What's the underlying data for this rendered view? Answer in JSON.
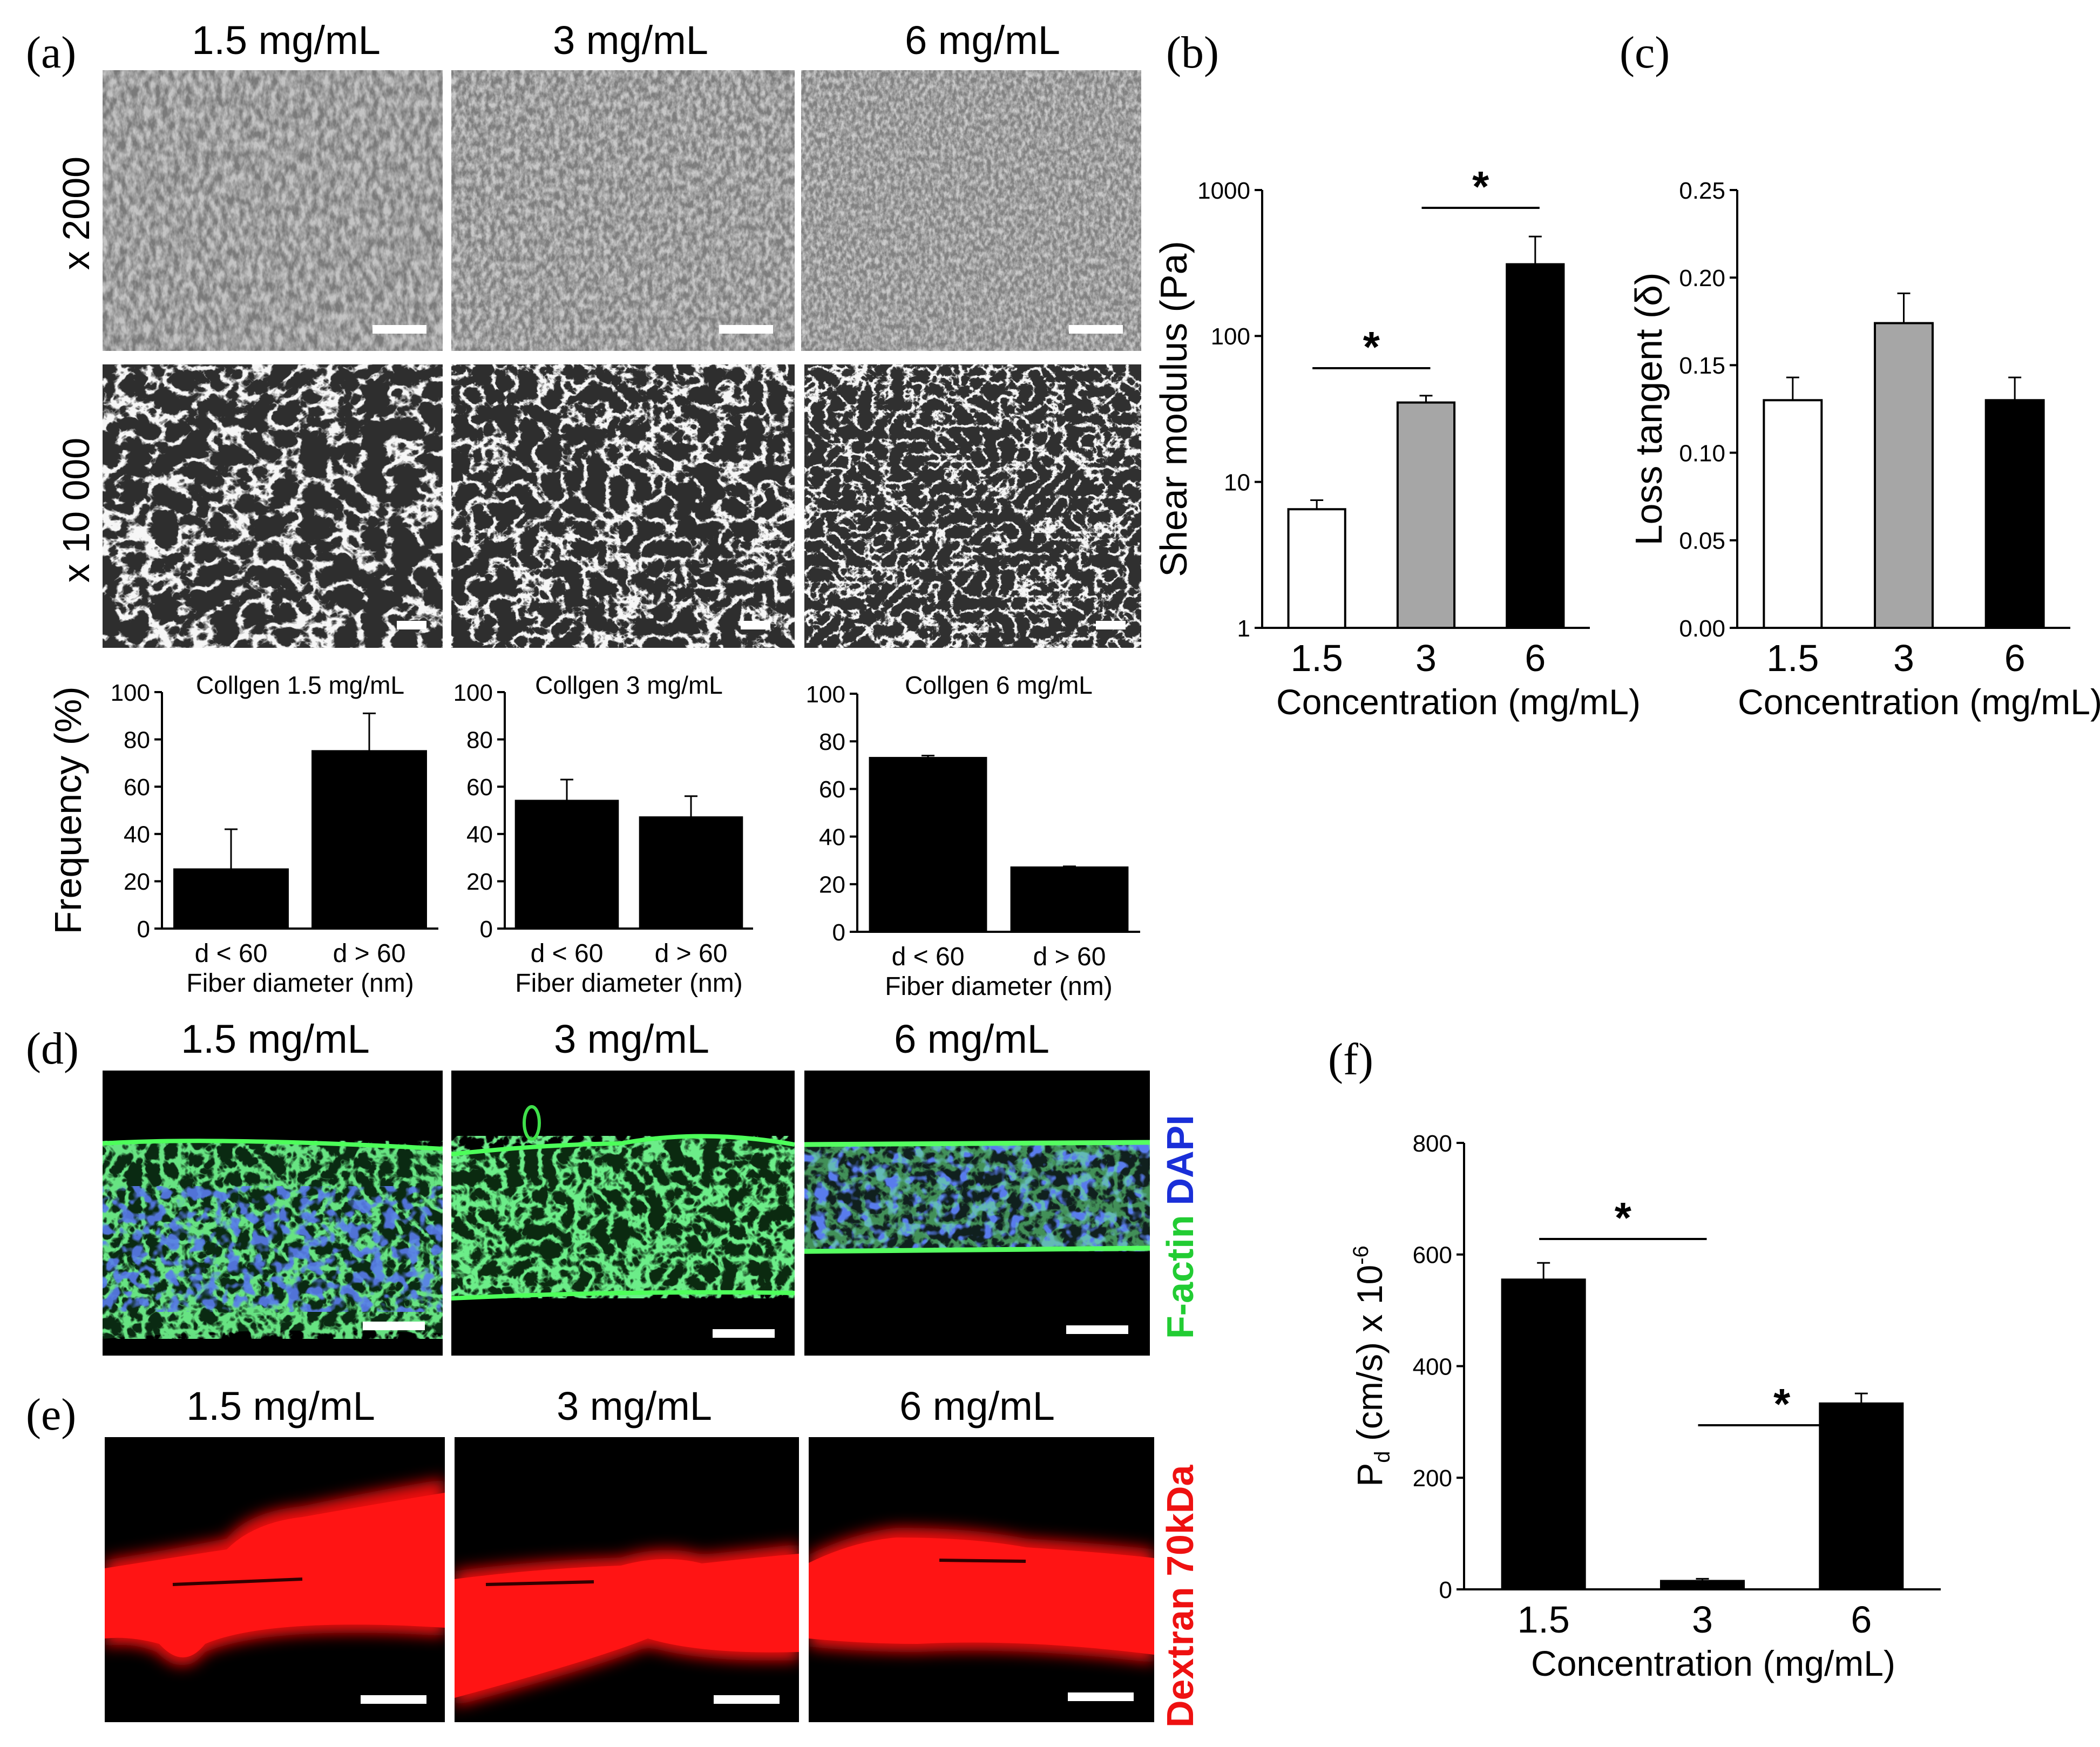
{
  "panels": {
    "a": {
      "letter": "(a)",
      "columns": [
        "1.5 mg/mL",
        "3 mg/mL",
        "6 mg/mL"
      ],
      "rows": [
        "x 2000",
        "x 10 000"
      ]
    },
    "b": {
      "letter": "(b)"
    },
    "c": {
      "letter": "(c)"
    },
    "d": {
      "letter": "(d)",
      "columns": [
        "1.5 mg/mL",
        "3 mg/mL",
        "6 mg/mL"
      ],
      "side_label_1": "F-actin",
      "side_label_2": "DAPI"
    },
    "e": {
      "letter": "(e)",
      "columns": [
        "1.5 mg/mL",
        "3 mg/mL",
        "6 mg/mL"
      ],
      "side_label": "Dextran 70kDa"
    },
    "f": {
      "letter": "(f)"
    }
  },
  "colors": {
    "bar_black": "#000000",
    "bar_gray": "#a6a6a6",
    "bar_white": "#ffffff",
    "factin_green": "#22cc33",
    "dapi_blue": "#1a2fd8",
    "dextran_red": "#ee1111",
    "sem_gray": "#9a9a9a"
  },
  "chart_data": [
    {
      "id": "freq1",
      "type": "bar",
      "title": "Collgen 1.5 mg/mL",
      "ylabel": "Frequency (%)",
      "xlabel": "Fiber diameter (nm)",
      "categories": [
        "d < 60",
        "d > 60"
      ],
      "values": [
        25,
        75
      ],
      "errors": [
        17,
        16
      ],
      "ylim": [
        0,
        100
      ],
      "yticks": [
        "0",
        "20",
        "40",
        "60",
        "80",
        "100"
      ]
    },
    {
      "id": "freq2",
      "type": "bar",
      "title": "Collgen 3 mg/mL",
      "ylabel": "",
      "xlabel": "Fiber diameter (nm)",
      "categories": [
        "d < 60",
        "d > 60"
      ],
      "values": [
        54,
        47
      ],
      "errors": [
        9,
        9
      ],
      "ylim": [
        0,
        100
      ],
      "yticks": [
        "0",
        "20",
        "40",
        "60",
        "80",
        "100"
      ]
    },
    {
      "id": "freq3",
      "type": "bar",
      "title": "Collgen 6 mg/mL",
      "ylabel": "",
      "xlabel": "Fiber diameter (nm)",
      "categories": [
        "d < 60",
        "d > 60"
      ],
      "values": [
        73,
        27
      ],
      "errors": [
        1,
        0.5
      ],
      "ylim": [
        0,
        100
      ],
      "yticks": [
        "0",
        "20",
        "40",
        "60",
        "80",
        "100"
      ]
    },
    {
      "id": "shear",
      "type": "bar",
      "scale": "log",
      "ylabel": "Shear modulus (Pa)",
      "xlabel": "Concentration (mg/mL)",
      "categories": [
        "1.5",
        "3",
        "6"
      ],
      "values": [
        6.5,
        35,
        310
      ],
      "errors": [
        1.0,
        4,
        170
      ],
      "ylim": [
        1,
        1000
      ],
      "yticks": [
        "1",
        "10",
        "100",
        "1000"
      ],
      "significance": [
        {
          "from": 0,
          "to": 1,
          "label": "*"
        },
        {
          "from": 1,
          "to": 2,
          "label": "*"
        }
      ]
    },
    {
      "id": "losstan",
      "type": "bar",
      "ylabel": "Loss tangent (δ)",
      "xlabel": "Concentration (mg/mL)",
      "categories": [
        "1.5",
        "3",
        "6"
      ],
      "values": [
        0.13,
        0.174,
        0.13
      ],
      "errors": [
        0.013,
        0.017,
        0.013
      ],
      "ylim": [
        0,
        0.25
      ],
      "yticks": [
        "0.00",
        "0.05",
        "0.10",
        "0.15",
        "0.20",
        "0.25"
      ]
    },
    {
      "id": "pd",
      "type": "bar",
      "ylabel_main": "P",
      "ylabel_sub": "d",
      "ylabel_rest": " (cm/s) x 10",
      "ylabel_sup": "-6",
      "xlabel": "Concentration (mg/mL)",
      "categories": [
        "1.5",
        "3",
        "6"
      ],
      "values": [
        555,
        15,
        333
      ],
      "errors": [
        30,
        4,
        18
      ],
      "ylim": [
        0,
        800
      ],
      "yticks": [
        "0",
        "200",
        "400",
        "600",
        "800"
      ],
      "significance": [
        {
          "from": 0,
          "to": 1,
          "label": "*"
        },
        {
          "from": 1,
          "to": 2,
          "label": "*"
        }
      ]
    }
  ]
}
